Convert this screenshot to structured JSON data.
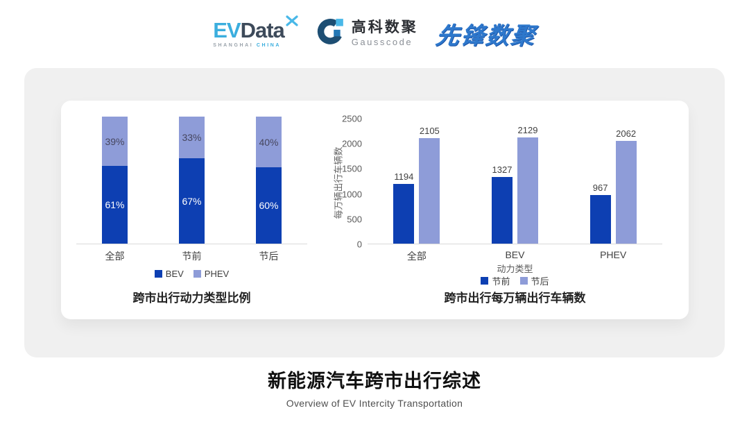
{
  "header": {
    "evdata": {
      "ev": "EV",
      "data": "Data",
      "tagline_left": "SHANGHAI",
      "tagline_right": "CHINA"
    },
    "gausscode": {
      "name_cn": "高科数聚",
      "name_en": "Gausscode"
    },
    "pioneer": {
      "name": "先锋数聚"
    }
  },
  "colors": {
    "primary": "#0D3FB2",
    "secondary": "#8E9CD8",
    "accent_light_blue": "#3BAEDE",
    "gauss_dark": "#1D4E73"
  },
  "chart_data": [
    {
      "type": "bar",
      "variant": "stacked-percent",
      "categories": [
        "全部",
        "节前",
        "节后"
      ],
      "series": [
        {
          "name": "BEV",
          "values": [
            61,
            67,
            60
          ]
        },
        {
          "name": "PHEV",
          "values": [
            39,
            33,
            40
          ]
        }
      ],
      "value_suffix": "%",
      "title": "跨市出行动力类型比例",
      "legend_position": "bottom",
      "ylim": [
        0,
        100
      ],
      "grid": false
    },
    {
      "type": "bar",
      "variant": "grouped",
      "categories": [
        "全部",
        "BEV",
        "PHEV"
      ],
      "series": [
        {
          "name": "节前",
          "values": [
            1194,
            1327,
            967
          ]
        },
        {
          "name": "节后",
          "values": [
            2105,
            2129,
            2062
          ]
        }
      ],
      "title": "跨市出行每万辆出行车辆数",
      "xlabel": "动力类型",
      "ylabel": "每万辆出行车辆数",
      "ylim": [
        0,
        2500
      ],
      "yticks": [
        0,
        500,
        1000,
        1500,
        2000,
        2500
      ],
      "legend_position": "bottom",
      "grid": false
    }
  ],
  "footer": {
    "title": "新能源汽车跨市出行综述",
    "subtitle": "Overview of EV Intercity Transportation"
  }
}
